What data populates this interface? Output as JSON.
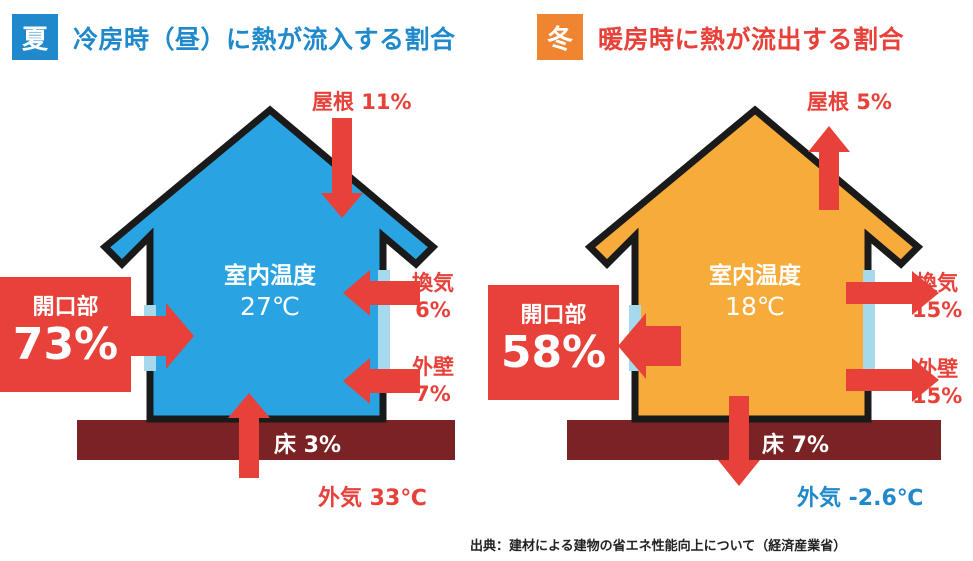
{
  "summer": {
    "badge": "夏",
    "title": "冷房時（昼）に熱が流入する割合",
    "inside_label": "室内温度",
    "inside_temp": "27℃",
    "opening_label": "開口部",
    "opening_pct": "73%",
    "roof": "屋根 11%",
    "vent_label": "換気",
    "vent_pct": "6%",
    "wall_label": "外壁",
    "wall_pct": "7%",
    "floor": "床 3%",
    "outside": "外気 33℃"
  },
  "winter": {
    "badge": "冬",
    "title": "暖房時に熱が流出する割合",
    "inside_label": "室内温度",
    "inside_temp": "18℃",
    "opening_label": "開口部",
    "opening_pct": "58%",
    "roof": "屋根 5%",
    "vent_label": "換気",
    "vent_pct": "15%",
    "wall_label": "外壁",
    "wall_pct": "15%",
    "floor": "床 7%",
    "outside": "外気 -2.6℃"
  },
  "source": "出典：建材による建物の省エネ性能向上について（経済産業省）",
  "colors": {
    "summer_fill": "#29a3e2",
    "winter_fill": "#f7ab3a",
    "arrow": "#e8413a",
    "ground": "#7b2324",
    "outline": "#1a1a1a",
    "window": "#a6d9ec"
  }
}
